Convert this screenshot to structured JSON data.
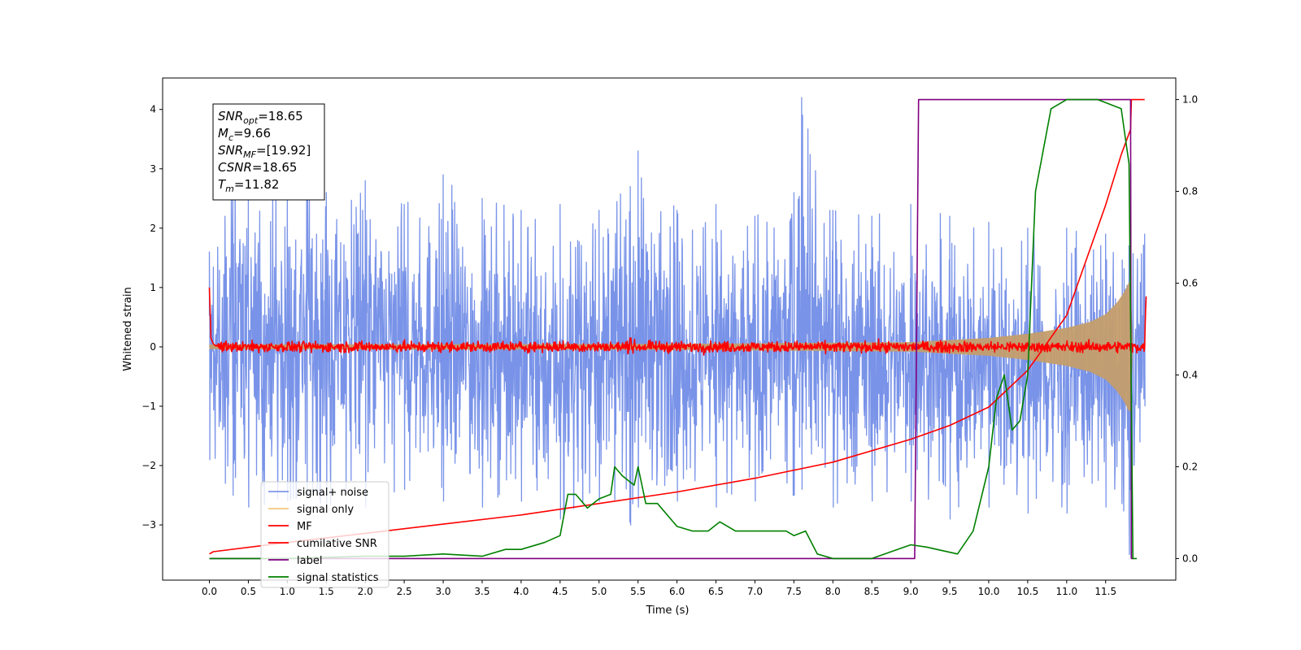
{
  "chart_data": {
    "type": "line",
    "xlabel": "Time (s)",
    "ylabel": "Whitened strain",
    "xlim": [
      -0.6,
      12.4
    ],
    "ylim": [
      -3.93,
      4.53
    ],
    "y2lim": [
      -0.047,
      1.047
    ],
    "grid": false,
    "legend_position": "lower-left",
    "x_ticks": [
      "0.0",
      "0.5",
      "1.0",
      "1.5",
      "2.0",
      "2.5",
      "3.0",
      "3.5",
      "4.0",
      "4.5",
      "5.0",
      "5.5",
      "6.0",
      "6.5",
      "7.0",
      "7.5",
      "8.0",
      "8.5",
      "9.0",
      "9.5",
      "10.0",
      "10.5",
      "11.0",
      "11.5"
    ],
    "y_ticks": [
      "−3",
      "−2",
      "−1",
      "0",
      "1",
      "2",
      "3",
      "4"
    ],
    "y2_ticks": [
      "0.0",
      "0.2",
      "0.4",
      "0.6",
      "0.8",
      "1.0"
    ],
    "annotation": [
      {
        "base": "SNR",
        "sub": "opt",
        "rest": "=18.65"
      },
      {
        "base": "M",
        "sub": "c",
        "rest": "=9.66"
      },
      {
        "base": "SNR",
        "sub": "MF",
        "rest": "=[19.92]"
      },
      {
        "base": "CSNR",
        "sub": "",
        "rest": "=18.65"
      },
      {
        "base": "T",
        "sub": "m",
        "rest": "=11.82"
      }
    ],
    "series": [
      {
        "name": "signal+ noise",
        "color": "#6a87e6",
        "axis": "left",
        "kind": "noise-band",
        "x": [
          0.0,
          0.2,
          0.3,
          0.33,
          0.5,
          1.0,
          1.25,
          1.5,
          2.0,
          2.5,
          3.0,
          3.5,
          4.0,
          4.5,
          5.0,
          5.4,
          5.5,
          6.0,
          6.5,
          7.0,
          7.5,
          7.6,
          8.0,
          8.5,
          9.0,
          9.5,
          10.0,
          10.5,
          11.0,
          11.5,
          11.8,
          11.82,
          12.0
        ],
        "upper": [
          1.6,
          2.2,
          2.6,
          3.7,
          2.6,
          2.7,
          3.2,
          2.6,
          2.8,
          2.4,
          2.9,
          2.5,
          2.3,
          2.4,
          2.3,
          2.7,
          3.3,
          2.3,
          2.4,
          2.2,
          2.6,
          4.2,
          2.3,
          2.2,
          2.4,
          2.2,
          2.1,
          2.0,
          2.0,
          1.9,
          1.7,
          1.5,
          1.9
        ],
        "lower": [
          -1.9,
          -2.3,
          -2.5,
          -2.2,
          -2.7,
          -2.6,
          -2.5,
          -2.7,
          -2.7,
          -2.4,
          -2.6,
          -2.7,
          -2.6,
          -2.9,
          -2.6,
          -3.0,
          -2.7,
          -2.6,
          -2.7,
          -2.6,
          -2.5,
          -2.4,
          -2.7,
          -2.6,
          -2.6,
          -2.9,
          -2.7,
          -2.8,
          -2.8,
          -2.7,
          -3.5,
          -3.55,
          -1.0
        ]
      },
      {
        "name": "signal only",
        "color": "#e1b572",
        "axis": "left",
        "kind": "chirp",
        "x": [
          0.0,
          6.0,
          9.0,
          10.0,
          10.5,
          11.0,
          11.3,
          11.5,
          11.65,
          11.75,
          11.8,
          11.82,
          11.85
        ],
        "amplitude": [
          0.04,
          0.05,
          0.08,
          0.15,
          0.22,
          0.32,
          0.42,
          0.55,
          0.75,
          0.95,
          1.1,
          1.1,
          0.0
        ]
      },
      {
        "name": "MF",
        "color": "#ff0000",
        "axis": "left",
        "kind": "noisy-line",
        "x": [
          0.0,
          0.02,
          0.05,
          0.1,
          12.0,
          12.01,
          12.02
        ],
        "y": [
          1.0,
          0.15,
          0.05,
          0.0,
          0.0,
          0.5,
          0.85
        ],
        "noise": 0.045
      },
      {
        "name": "cumilative SNR",
        "color": "#ff0000",
        "axis": "right",
        "x": [
          0.0,
          0.05,
          1.0,
          2.0,
          3.0,
          4.0,
          5.0,
          6.0,
          7.0,
          8.0,
          9.0,
          9.5,
          10.0,
          10.5,
          11.0,
          11.5,
          11.7,
          11.82,
          11.83,
          12.0
        ],
        "y": [
          0.01,
          0.015,
          0.035,
          0.055,
          0.075,
          0.095,
          0.12,
          0.145,
          0.175,
          0.21,
          0.26,
          0.29,
          0.33,
          0.41,
          0.53,
          0.77,
          0.88,
          0.935,
          1.0,
          1.0
        ]
      },
      {
        "name": "label",
        "color": "#800080",
        "axis": "right",
        "x": [
          0.0,
          9.05,
          9.1,
          11.78,
          11.82,
          11.83,
          11.86
        ],
        "y": [
          0.0,
          0.0,
          1.0,
          1.0,
          1.0,
          0.0,
          0.0
        ]
      },
      {
        "name": "signal statistics",
        "color": "#008000",
        "axis": "right",
        "x": [
          0.0,
          1.0,
          2.0,
          2.5,
          3.0,
          3.5,
          3.8,
          4.0,
          4.3,
          4.5,
          4.6,
          4.7,
          4.85,
          5.0,
          5.15,
          5.2,
          5.3,
          5.45,
          5.5,
          5.6,
          5.75,
          6.0,
          6.2,
          6.4,
          6.55,
          6.75,
          7.0,
          7.2,
          7.4,
          7.5,
          7.65,
          7.8,
          8.0,
          8.5,
          9.0,
          9.2,
          9.6,
          9.8,
          10.0,
          10.1,
          10.2,
          10.3,
          10.4,
          10.5,
          10.6,
          10.8,
          11.0,
          11.4,
          11.7,
          11.8,
          11.85,
          11.9
        ],
        "y": [
          0.0,
          0.0,
          0.005,
          0.005,
          0.01,
          0.005,
          0.02,
          0.02,
          0.035,
          0.05,
          0.14,
          0.14,
          0.11,
          0.13,
          0.14,
          0.2,
          0.18,
          0.16,
          0.2,
          0.12,
          0.12,
          0.07,
          0.06,
          0.06,
          0.08,
          0.06,
          0.06,
          0.06,
          0.06,
          0.05,
          0.06,
          0.01,
          0.0,
          0.0,
          0.03,
          0.025,
          0.01,
          0.06,
          0.2,
          0.35,
          0.4,
          0.28,
          0.3,
          0.4,
          0.8,
          0.98,
          1.0,
          1.0,
          0.98,
          0.86,
          0.0,
          0.0
        ]
      }
    ]
  }
}
